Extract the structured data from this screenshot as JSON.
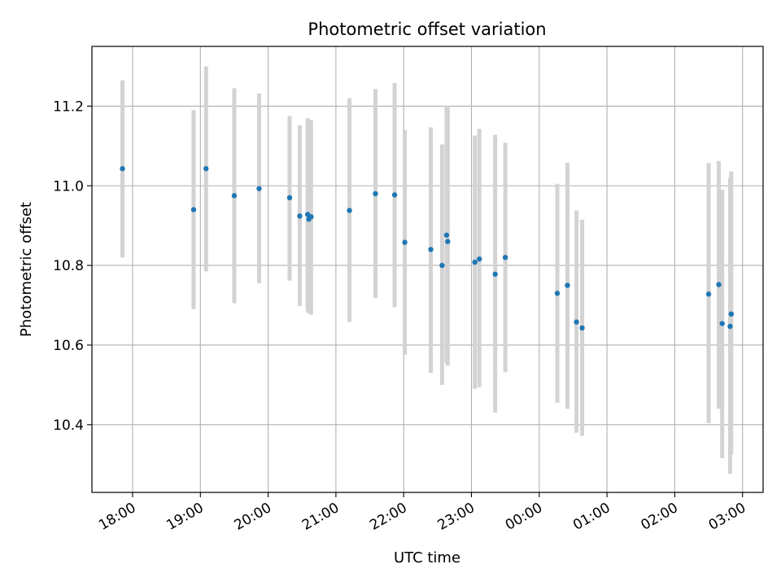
{
  "chart_data": {
    "type": "scatter",
    "title": "Photometric offset variation",
    "xlabel": "UTC time",
    "ylabel": "Photometric offset",
    "x_ticks": [
      "18:00",
      "19:00",
      "20:00",
      "21:00",
      "22:00",
      "23:00",
      "00:00",
      "01:00",
      "02:00",
      "03:00"
    ],
    "y_ticks": [
      "10.4",
      "10.6",
      "10.8",
      "11.0",
      "11.2"
    ],
    "y_tick_values": [
      10.4,
      10.6,
      10.8,
      11.0,
      11.2
    ],
    "ylim": [
      10.23,
      11.35
    ],
    "grid": true,
    "legend": "none",
    "point_color": "#1f77b4",
    "errorbar_color": "#d3d3d3",
    "points": [
      {
        "t": "17:51",
        "y": 11.043,
        "lo": 10.82,
        "hi": 11.265
      },
      {
        "t": "18:54",
        "y": 10.94,
        "lo": 10.69,
        "hi": 11.19
      },
      {
        "t": "19:05",
        "y": 11.043,
        "lo": 10.785,
        "hi": 11.3
      },
      {
        "t": "19:30",
        "y": 10.975,
        "lo": 10.705,
        "hi": 11.245
      },
      {
        "t": "19:52",
        "y": 10.993,
        "lo": 10.755,
        "hi": 11.232
      },
      {
        "t": "20:19",
        "y": 10.97,
        "lo": 10.762,
        "hi": 11.175
      },
      {
        "t": "20:28",
        "y": 10.924,
        "lo": 10.698,
        "hi": 11.152
      },
      {
        "t": "20:35",
        "y": 10.928,
        "lo": 10.685,
        "hi": 11.17
      },
      {
        "t": "20:36",
        "y": 10.916,
        "lo": 10.68,
        "hi": 11.165
      },
      {
        "t": "20:38",
        "y": 10.922,
        "lo": 10.676,
        "hi": 11.165
      },
      {
        "t": "21:12",
        "y": 10.938,
        "lo": 10.658,
        "hi": 11.22
      },
      {
        "t": "21:35",
        "y": 10.98,
        "lo": 10.718,
        "hi": 11.243
      },
      {
        "t": "21:52",
        "y": 10.977,
        "lo": 10.695,
        "hi": 11.258
      },
      {
        "t": "22:01",
        "y": 10.858,
        "lo": 10.576,
        "hi": 11.14
      },
      {
        "t": "22:24",
        "y": 10.84,
        "lo": 10.53,
        "hi": 11.147
      },
      {
        "t": "22:34",
        "y": 10.8,
        "lo": 10.5,
        "hi": 11.104
      },
      {
        "t": "22:38",
        "y": 10.876,
        "lo": 10.555,
        "hi": 11.2
      },
      {
        "t": "22:39",
        "y": 10.86,
        "lo": 10.548,
        "hi": 11.2
      },
      {
        "t": "23:03",
        "y": 10.808,
        "lo": 10.49,
        "hi": 11.126
      },
      {
        "t": "23:07",
        "y": 10.816,
        "lo": 10.494,
        "hi": 11.143
      },
      {
        "t": "23:21",
        "y": 10.778,
        "lo": 10.43,
        "hi": 11.128
      },
      {
        "t": "23:30",
        "y": 10.82,
        "lo": 10.532,
        "hi": 11.108
      },
      {
        "t": "00:16",
        "y": 10.73,
        "lo": 10.455,
        "hi": 11.005
      },
      {
        "t": "00:25",
        "y": 10.75,
        "lo": 10.44,
        "hi": 11.058
      },
      {
        "t": "00:33",
        "y": 10.658,
        "lo": 10.38,
        "hi": 10.938
      },
      {
        "t": "00:38",
        "y": 10.643,
        "lo": 10.372,
        "hi": 10.915
      },
      {
        "t": "02:30",
        "y": 10.728,
        "lo": 10.404,
        "hi": 11.057
      },
      {
        "t": "02:39",
        "y": 10.752,
        "lo": 10.44,
        "hi": 11.062
      },
      {
        "t": "02:42",
        "y": 10.654,
        "lo": 10.316,
        "hi": 10.99
      },
      {
        "t": "02:49",
        "y": 10.647,
        "lo": 10.277,
        "hi": 11.02
      },
      {
        "t": "02:50",
        "y": 10.678,
        "lo": 10.325,
        "hi": 11.036
      }
    ]
  }
}
